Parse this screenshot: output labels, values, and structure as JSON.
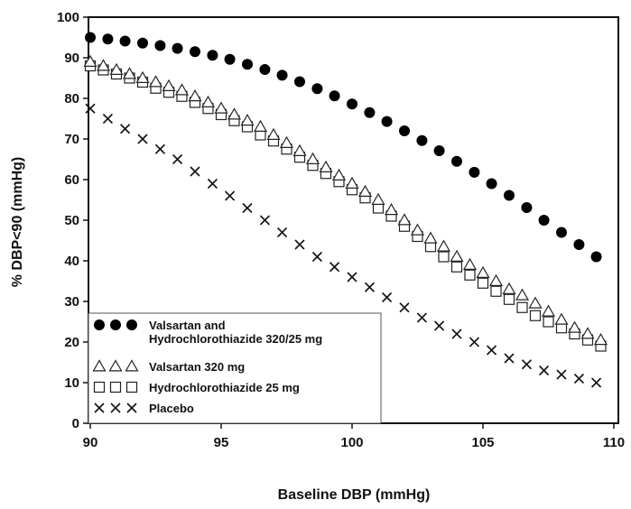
{
  "chart_data": {
    "type": "scatter",
    "xlabel": "Baseline DBP (mmHg)",
    "ylabel": "% DBP<90 (mmHg)",
    "xlim": [
      90,
      110
    ],
    "ylim": [
      0,
      100
    ],
    "xticks": [
      "90",
      "95",
      "100",
      "105",
      "110"
    ],
    "yticks": [
      "0",
      "10",
      "20",
      "30",
      "40",
      "50",
      "60",
      "70",
      "80",
      "90",
      "100"
    ],
    "grid": false,
    "legend_position": "bottom-left",
    "series": [
      {
        "name": "Valsartan and Hydrochlorothiazide 320/25 mg",
        "legend_lines": [
          "Valsartan and",
          "Hydrochlorothiazide 320/25 mg"
        ],
        "marker": "filled-circle",
        "x": [
          90.0,
          90.67,
          91.33,
          92.0,
          92.67,
          93.33,
          94.0,
          94.67,
          95.33,
          96.0,
          96.67,
          97.33,
          98.0,
          98.67,
          99.33,
          100.0,
          100.67,
          101.33,
          102.0,
          102.67,
          103.33,
          104.0,
          104.67,
          105.33,
          106.0,
          106.67,
          107.33,
          108.0,
          108.67,
          109.33
        ],
        "y": [
          95.0,
          94.6,
          94.1,
          93.6,
          93.0,
          92.3,
          91.5,
          90.6,
          89.6,
          88.4,
          87.1,
          85.7,
          84.1,
          82.4,
          80.6,
          78.6,
          76.5,
          74.3,
          72.0,
          69.6,
          67.1,
          64.5,
          61.8,
          59.0,
          56.1,
          53.1,
          50.0,
          47.0,
          44.0,
          41.0
        ]
      },
      {
        "name": "Valsartan 320 mg",
        "legend_lines": [
          "Valsartan 320 mg"
        ],
        "marker": "open-triangle",
        "x": [
          90.0,
          90.5,
          91.0,
          91.5,
          92.0,
          92.5,
          93.0,
          93.5,
          94.0,
          94.5,
          95.0,
          95.5,
          96.0,
          96.5,
          97.0,
          97.5,
          98.0,
          98.5,
          99.0,
          99.5,
          100.0,
          100.5,
          101.0,
          101.5,
          102.0,
          102.5,
          103.0,
          103.5,
          104.0,
          104.5,
          105.0,
          105.5,
          106.0,
          106.5,
          107.0,
          107.5,
          108.0,
          108.5,
          109.0,
          109.5
        ],
        "y": [
          89.0,
          88.0,
          87.0,
          86.0,
          85.0,
          84.0,
          83.0,
          82.0,
          80.5,
          79.0,
          77.5,
          76.0,
          74.5,
          73.0,
          71.0,
          69.0,
          67.0,
          65.0,
          63.0,
          61.0,
          59.0,
          57.0,
          55.0,
          52.5,
          50.0,
          47.5,
          45.5,
          43.5,
          41.0,
          39.0,
          37.0,
          35.0,
          33.0,
          31.5,
          29.5,
          27.5,
          25.5,
          23.5,
          22.0,
          20.5
        ]
      },
      {
        "name": "Hydrochlorothiazide 25 mg",
        "legend_lines": [
          "Hydrochlorothiazide 25 mg"
        ],
        "marker": "open-square",
        "x": [
          90.0,
          90.5,
          91.0,
          91.5,
          92.0,
          92.5,
          93.0,
          93.5,
          94.0,
          94.5,
          95.0,
          95.5,
          96.0,
          96.5,
          97.0,
          97.5,
          98.0,
          98.5,
          99.0,
          99.5,
          100.0,
          100.5,
          101.0,
          101.5,
          102.0,
          102.5,
          103.0,
          103.5,
          104.0,
          104.5,
          105.0,
          105.5,
          106.0,
          106.5,
          107.0,
          107.5,
          108.0,
          108.5,
          109.0,
          109.5
        ],
        "y": [
          88.0,
          87.0,
          86.0,
          85.0,
          84.0,
          82.5,
          81.5,
          80.5,
          79.0,
          77.5,
          76.0,
          74.5,
          73.0,
          71.0,
          69.5,
          67.5,
          65.5,
          63.5,
          61.5,
          59.5,
          57.5,
          55.5,
          53.0,
          51.0,
          48.5,
          46.0,
          43.5,
          41.0,
          38.5,
          36.5,
          34.5,
          32.5,
          30.5,
          28.5,
          26.5,
          25.0,
          23.5,
          22.0,
          20.5,
          19.0
        ]
      },
      {
        "name": "Placebo",
        "legend_lines": [
          "Placebo"
        ],
        "marker": "x",
        "x": [
          90.0,
          90.67,
          91.33,
          92.0,
          92.67,
          93.33,
          94.0,
          94.67,
          95.33,
          96.0,
          96.67,
          97.33,
          98.0,
          98.67,
          99.33,
          100.0,
          100.67,
          101.33,
          102.0,
          102.67,
          103.33,
          104.0,
          104.67,
          105.33,
          106.0,
          106.67,
          107.33,
          108.0,
          108.67,
          109.33
        ],
        "y": [
          77.5,
          75.0,
          72.5,
          70.0,
          67.5,
          65.0,
          62.0,
          59.0,
          56.0,
          53.0,
          50.0,
          47.0,
          44.0,
          41.0,
          38.5,
          36.0,
          33.5,
          31.0,
          28.5,
          26.0,
          24.0,
          22.0,
          20.0,
          18.0,
          16.0,
          14.5,
          13.0,
          12.0,
          11.0,
          10.0
        ]
      }
    ]
  }
}
